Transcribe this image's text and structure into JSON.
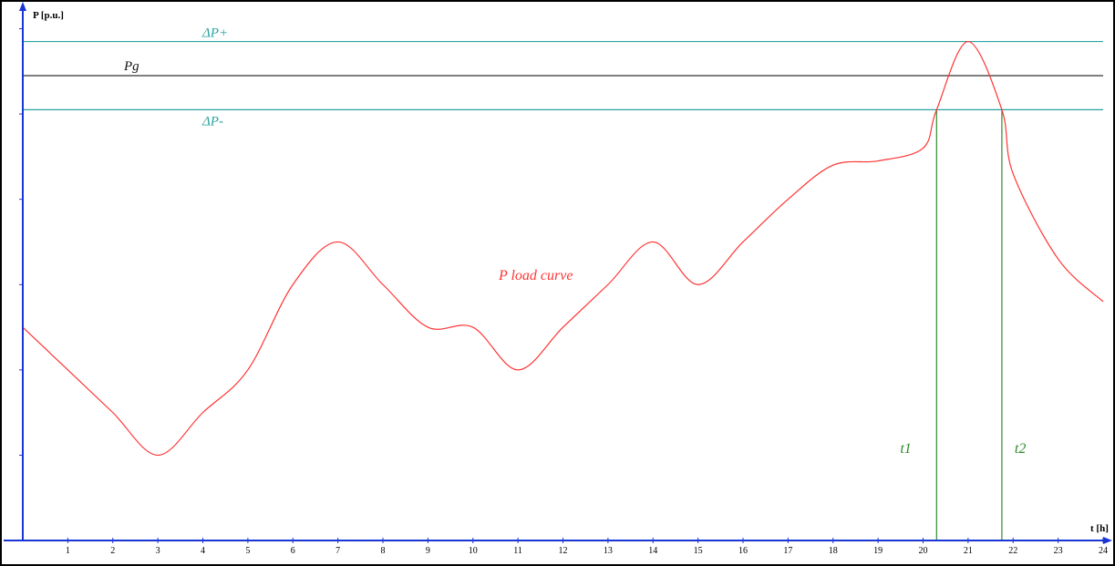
{
  "chart_data": {
    "type": "line",
    "ylabel": "P [p.u.]",
    "xlabel": "t [h]",
    "xlim": [
      0,
      24
    ],
    "ylim": [
      0,
      6
    ],
    "x_ticks": [
      "1",
      "2",
      "3",
      "4",
      "5",
      "6",
      "7",
      "8",
      "9",
      "10",
      "11",
      "12",
      "13",
      "14",
      "15",
      "16",
      "17",
      "18",
      "19",
      "20",
      "21",
      "22",
      "23",
      "24"
    ],
    "y_tick_count": 6,
    "colors": {
      "load": "#ff3333",
      "delta": "#2aa3a3",
      "pg": "#333333",
      "time": "#2e8b2e",
      "axis": "#1a35d6"
    },
    "reference_lines": [
      {
        "label": "ΔP+",
        "y": 5.85,
        "color": "delta"
      },
      {
        "label": "Pg",
        "y": 5.45,
        "color": "pg"
      },
      {
        "label": "ΔP-",
        "y": 5.05,
        "color": "delta"
      }
    ],
    "series": [
      {
        "name": "P load curve",
        "x": [
          0,
          1,
          2,
          3,
          4,
          5,
          6,
          7,
          8,
          9,
          10,
          11,
          12,
          13,
          14,
          15,
          16,
          17,
          18,
          19,
          20,
          20.3,
          21,
          21.75,
          22,
          23,
          24
        ],
        "y": [
          2.5,
          2.0,
          1.5,
          1.0,
          1.5,
          2.0,
          3.0,
          3.5,
          3.0,
          2.5,
          2.5,
          2.0,
          2.5,
          3.0,
          3.5,
          3.0,
          3.5,
          4.0,
          4.4,
          4.45,
          4.6,
          5.05,
          5.85,
          5.05,
          4.3,
          3.3,
          2.8
        ]
      }
    ],
    "time_markers": [
      {
        "label": "t1",
        "x": 20.3
      },
      {
        "label": "t2",
        "x": 21.75
      }
    ]
  }
}
